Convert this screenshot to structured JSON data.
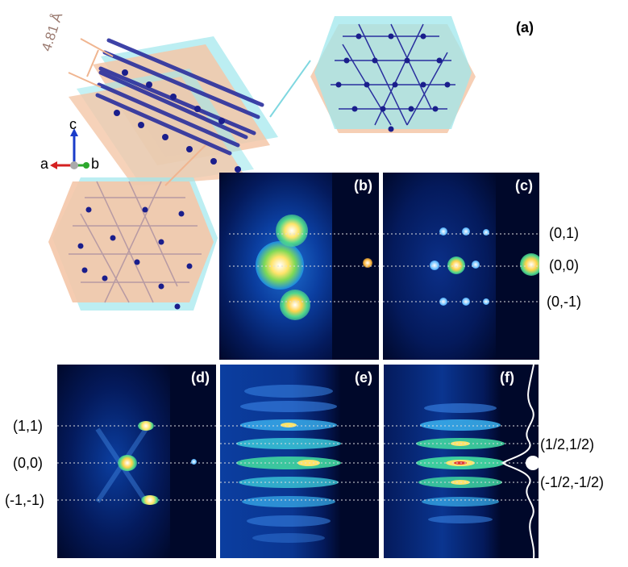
{
  "figure": {
    "panel_labels": {
      "a": "(a)",
      "b": "(b)",
      "c": "(c)",
      "d": "(d)",
      "e": "(e)",
      "f": "(f)"
    },
    "interlayer_distance": "4.81 Å",
    "axes": {
      "c": "c",
      "a": "a",
      "b": "b"
    },
    "right_labels_top": [
      "(0,1)",
      "(0,0)",
      "(0,-1)"
    ],
    "left_labels_bottom": [
      "(1,1)",
      "(0,0)",
      "(-1,-1)"
    ],
    "right_labels_bottom": [
      "(1/2,1/2)",
      "(-1/2,-1/2)"
    ]
  },
  "colors": {
    "panel_bg": "#00082a",
    "plane_orange": "#f4c7a8",
    "plane_cyan": "#9fe7ec",
    "atom": "#1a1e8c",
    "bond": "#b79aa3"
  }
}
